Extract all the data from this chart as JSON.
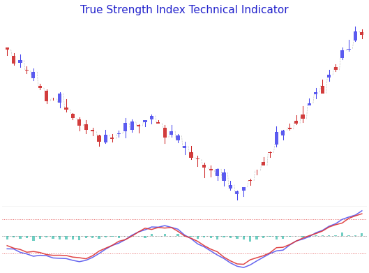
{
  "title": "True Strength Index Technical Indicator",
  "title_color": "#2222cc",
  "title_fontsize": 11,
  "bg_color": "#ffffff",
  "n_candles": 55,
  "upper_panel_ratio": 3.0,
  "lower_panel_ratio": 1.0,
  "separator_color": "#aaaaaa",
  "up_color": "#4444ee",
  "down_color": "#cc2222",
  "doji_color": "#bbbbcc",
  "tsi_color": "#5555ee",
  "signal_color": "#dd3333",
  "hist_color": "#33bbaa",
  "zero_color": "#444444",
  "level_color": "#dd3333",
  "upper_level": 0.38,
  "lower_level": -0.38,
  "lower_ylim": [
    -0.75,
    0.65
  ]
}
